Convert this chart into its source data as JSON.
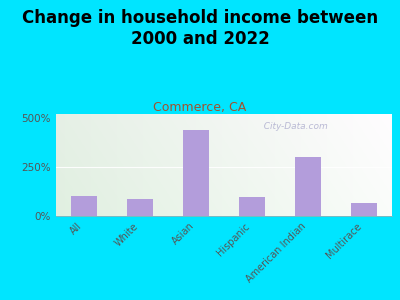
{
  "title": "Change in household income between\n2000 and 2022",
  "subtitle": "Commerce, CA",
  "categories": [
    "All",
    "White",
    "Asian",
    "Hispanic",
    "American Indian",
    "Multirace"
  ],
  "values": [
    100,
    85,
    440,
    95,
    300,
    65
  ],
  "bar_color": "#b39ddb",
  "background_outer": "#00e5ff",
  "yticks": [
    0,
    250,
    500
  ],
  "ytick_labels": [
    "0%",
    "250%",
    "500%"
  ],
  "ymax": 520,
  "title_fontsize": 12,
  "subtitle_fontsize": 9,
  "subtitle_color": "#a0522d",
  "watermark": "  City-Data.com",
  "watermark_color": "#aaaacc"
}
